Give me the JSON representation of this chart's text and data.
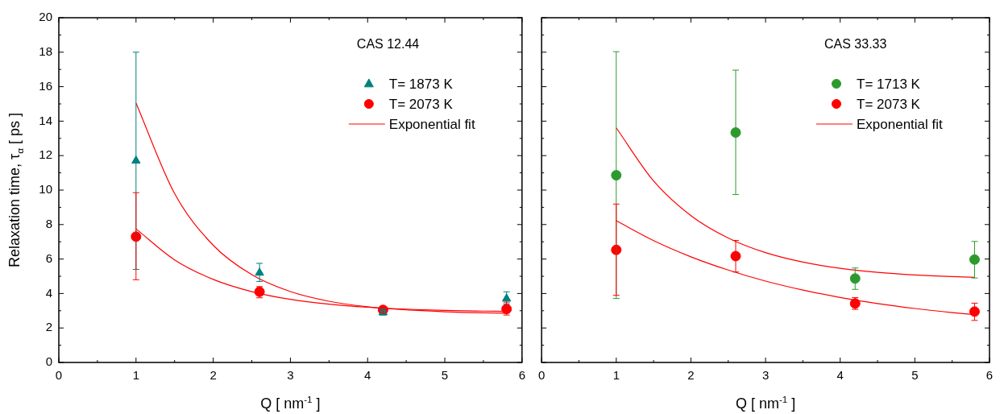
{
  "chart_data": [
    {
      "type": "scatter",
      "title": "CAS 12.44",
      "xlabel": "Q [ nm$^{-1}$ ]",
      "ylabel": "Relaxation time, τ$_{α}$ [ ps ]",
      "x": [
        1,
        2.6,
        4.2,
        5.8
      ],
      "xlim": [
        0,
        6
      ],
      "xticks": [
        0,
        {
          "value": 0.5,
          "label": null
        },
        1,
        {
          "value": 1.5,
          "label": null
        },
        2,
        {
          "value": 2.5,
          "label": null
        },
        3,
        {
          "value": 3.5,
          "label": null
        },
        4,
        {
          "value": 4.5,
          "label": null
        },
        5,
        {
          "value": 5.5,
          "label": null
        },
        6
      ],
      "ylim": [
        0,
        20
      ],
      "yticks": [
        0,
        {
          "value": 1,
          "label": null
        },
        2,
        {
          "value": 3,
          "label": null
        },
        4,
        {
          "value": 5,
          "label": null
        },
        6,
        {
          "value": 7,
          "label": null
        },
        8,
        {
          "value": 9,
          "label": null
        },
        10,
        {
          "value": 11,
          "label": null
        },
        12,
        {
          "value": 13,
          "label": null
        },
        14,
        {
          "value": 15,
          "label": null
        },
        16,
        {
          "value": 17,
          "label": null
        },
        18,
        {
          "value": 19,
          "label": null
        },
        20
      ],
      "legend": "top right",
      "series": [
        {
          "name": "T= 1873 K",
          "type": "scatter",
          "marker": "triangle",
          "color": "#008080",
          "values": [
            11.7,
            5.2,
            2.9,
            3.7
          ],
          "errors": [
            [
              5.4,
              18
            ],
            [
              4.7,
              5.75
            ],
            [
              2.75,
              3.1
            ],
            [
              3.4,
              4.1
            ]
          ]
        },
        {
          "name": "T= 2073 K",
          "type": "scatter",
          "marker": "circle",
          "color": "#ff0000",
          "values": [
            7.3,
            4.1,
            3.05,
            3.1
          ],
          "errors": [
            [
              4.8,
              9.85
            ],
            [
              3.75,
              4.4
            ],
            [
              2.85,
              3.25
            ],
            [
              2.75,
              3.5
            ]
          ]
        },
        {
          "name": "Exponential fit",
          "type": "line",
          "marker": "none",
          "color": "#ff0000",
          "x": [
            1,
            1.5,
            2,
            2.5,
            3,
            3.5,
            4,
            4.5,
            5,
            5.5,
            5.8
          ],
          "values": [
            15.05,
            9.8,
            6.8,
            5.09,
            4.11,
            3.55,
            3.23,
            3.05,
            2.94,
            2.88,
            2.86
          ]
        },
        {
          "type": "line",
          "marker": "none",
          "color": "#ff0000",
          "x": [
            1,
            1.5,
            2,
            2.5,
            3,
            3.5,
            4,
            4.5,
            5,
            5.5,
            5.8
          ],
          "values": [
            7.75,
            5.95,
            4.82,
            4.11,
            3.66,
            3.38,
            3.2,
            3.09,
            3.02,
            2.98,
            2.96
          ]
        }
      ]
    },
    {
      "type": "scatter",
      "title": "CAS 33.33",
      "xlabel": "Q [ nm$^{-1}$ ]",
      "tick_labels": "x",
      "x": [
        1,
        2.6,
        4.2,
        5.8
      ],
      "xlim": [
        0,
        6
      ],
      "xticks": [
        0,
        {
          "value": 0.5,
          "label": null
        },
        1,
        {
          "value": 1.5,
          "label": null
        },
        2,
        {
          "value": 2.5,
          "label": null
        },
        3,
        {
          "value": 3.5,
          "label": null
        },
        4,
        {
          "value": 4.5,
          "label": null
        },
        5,
        {
          "value": 5.5,
          "label": null
        },
        6
      ],
      "ylim": [
        0,
        20
      ],
      "yticks": [
        0,
        {
          "value": 1,
          "label": null
        },
        2,
        {
          "value": 3,
          "label": null
        },
        4,
        {
          "value": 5,
          "label": null
        },
        6,
        {
          "value": 7,
          "label": null
        },
        8,
        {
          "value": 9,
          "label": null
        },
        10,
        {
          "value": 11,
          "label": null
        },
        12,
        {
          "value": 13,
          "label": null
        },
        14,
        {
          "value": 15,
          "label": null
        },
        16,
        {
          "value": 17,
          "label": null
        },
        18,
        {
          "value": 19,
          "label": null
        },
        20
      ],
      "legend": "top right",
      "series": [
        {
          "name": "T= 1713 K",
          "type": "scatter",
          "marker": "circle",
          "color": "#2e9a2e",
          "values": [
            10.86,
            13.34,
            4.87,
            5.97
          ],
          "errors": [
            [
              3.71,
              18.03
            ],
            [
              9.74,
              16.96
            ],
            [
              4.24,
              5.48
            ],
            [
              4.9,
              7.02
            ]
          ]
        },
        {
          "name": "T= 2073 K",
          "type": "scatter",
          "marker": "circle",
          "color": "#ff0000",
          "values": [
            6.53,
            6.17,
            3.42,
            2.95
          ],
          "errors": [
            [
              3.89,
              9.19
            ],
            [
              5.25,
              7.08
            ],
            [
              3.08,
              3.76
            ],
            [
              2.44,
              3.44
            ]
          ]
        },
        {
          "name": "Exponential fit",
          "type": "line",
          "marker": "none",
          "color": "#ff0000",
          "x": [
            1,
            1.5,
            2,
            2.5,
            3,
            3.5,
            4,
            4.5,
            5,
            5.5,
            5.8
          ],
          "values": [
            13.61,
            10.53,
            8.52,
            7.22,
            6.37,
            5.82,
            5.46,
            5.23,
            5.08,
            4.98,
            4.94
          ]
        },
        {
          "type": "line",
          "marker": "none",
          "color": "#ff0000",
          "x": [
            1,
            1.5,
            2,
            2.5,
            3,
            3.5,
            4,
            4.5,
            5,
            5.5,
            5.8
          ],
          "values": [
            8.22,
            7.07,
            6.13,
            5.36,
            4.72,
            4.2,
            3.77,
            3.42,
            3.13,
            2.89,
            2.77
          ]
        }
      ]
    }
  ]
}
